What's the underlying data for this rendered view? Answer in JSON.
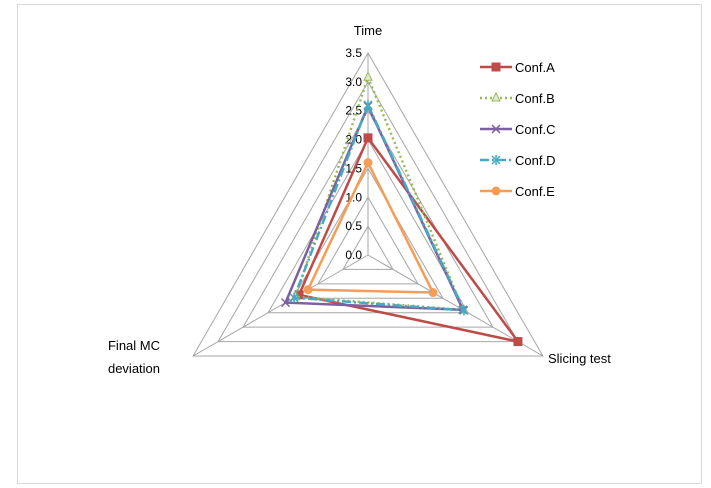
{
  "chart_data": {
    "type": "radar",
    "title": "",
    "axes": [
      "Time",
      "Slicing test",
      "Final MC deviation"
    ],
    "axis_range": [
      0,
      3.5
    ],
    "tick_step": 0.5,
    "tick_labels": [
      "0.0",
      "0.5",
      "1.0",
      "1.5",
      "2.0",
      "2.5",
      "3.0",
      "3.5"
    ],
    "grid": true,
    "legend_position": "right",
    "series": [
      {
        "name": "Conf.A",
        "values": [
          2.03,
          3.0,
          1.38
        ],
        "color": "#be4b48",
        "dash": "solid",
        "marker": "square"
      },
      {
        "name": "Conf.B",
        "values": [
          3.08,
          1.9,
          1.45
        ],
        "color": "#98b954",
        "dash": "dot",
        "marker": "triangle"
      },
      {
        "name": "Conf.C",
        "values": [
          2.58,
          1.9,
          1.65
        ],
        "color": "#7d60a0",
        "dash": "solid",
        "marker": "x"
      },
      {
        "name": "Conf.D",
        "values": [
          2.6,
          1.92,
          1.48
        ],
        "color": "#46aac5",
        "dash": "dashdot",
        "marker": "star"
      },
      {
        "name": "Conf.E",
        "values": [
          1.6,
          1.3,
          1.2
        ],
        "color": "#f59d56",
        "dash": "solid",
        "marker": "circle"
      }
    ]
  }
}
